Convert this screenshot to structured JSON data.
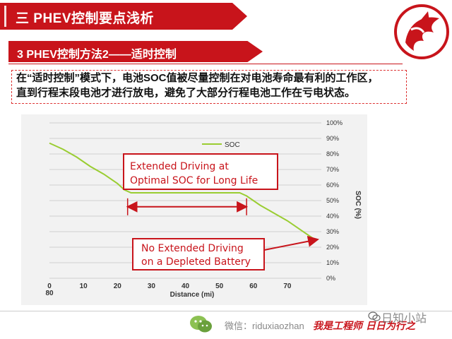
{
  "header": {
    "title": "三 PHEV控制要点浅析"
  },
  "section": {
    "title": "3 PHEV控制方法2——适时控制"
  },
  "description": {
    "line1": "在“适时控制”模式下，电池SOC值被尽量控制在对电池寿命最有利的工作区，",
    "line2": "直到行程末段电池才进行放电，避免了大部分行程电池工作在亏电状态。"
  },
  "colors": {
    "accent": "#c8141b",
    "soc_line": "#9acd32",
    "callout_border": "#c8141b"
  },
  "chart_data": {
    "type": "line",
    "xlabel": "Distance (mi)",
    "ylabel": "SOC (%)",
    "xlim": [
      0,
      80
    ],
    "ylim": [
      0,
      100
    ],
    "x_ticks": [
      0,
      10,
      20,
      30,
      40,
      50,
      60,
      70
    ],
    "x_tick_labels": [
      "0",
      "10",
      "20",
      "30",
      "40",
      "50",
      "60",
      "70"
    ],
    "x_extra_label": "80",
    "y_ticks": [
      0,
      10,
      20,
      30,
      40,
      50,
      60,
      70,
      80,
      90,
      100
    ],
    "y_tick_labels": [
      "0%",
      "10%",
      "20%",
      "30%",
      "40%",
      "50%",
      "60%",
      "70%",
      "80%",
      "90%",
      "100%"
    ],
    "grid": true,
    "legend": "top-left",
    "series": [
      {
        "name": "SOC",
        "x": [
          0,
          4,
          8,
          12,
          16,
          20,
          22,
          24,
          30,
          40,
          50,
          56,
          58,
          62,
          66,
          70,
          74,
          78
        ],
        "y": [
          87,
          83,
          78,
          72,
          67,
          61,
          57,
          55,
          55,
          55,
          55,
          55,
          53,
          47,
          42,
          37,
          31,
          25
        ]
      }
    ],
    "annotations": {
      "box1": {
        "line1": "Extended Driving at",
        "line2": "Optimal SOC for Long Life"
      },
      "box2": {
        "line1": "No Extended Driving",
        "line2": "on a Depleted Battery"
      },
      "span": {
        "x_start": 23,
        "x_end": 58,
        "y": 46
      }
    }
  },
  "footer": {
    "wechat_label": "微信：riduxiaozhan",
    "slogan": "我是工程师 日日为行之",
    "watermark": "日知小站"
  },
  "icons": {
    "logo": "dragon-logo-icon",
    "wechat": "wechat-icon"
  }
}
